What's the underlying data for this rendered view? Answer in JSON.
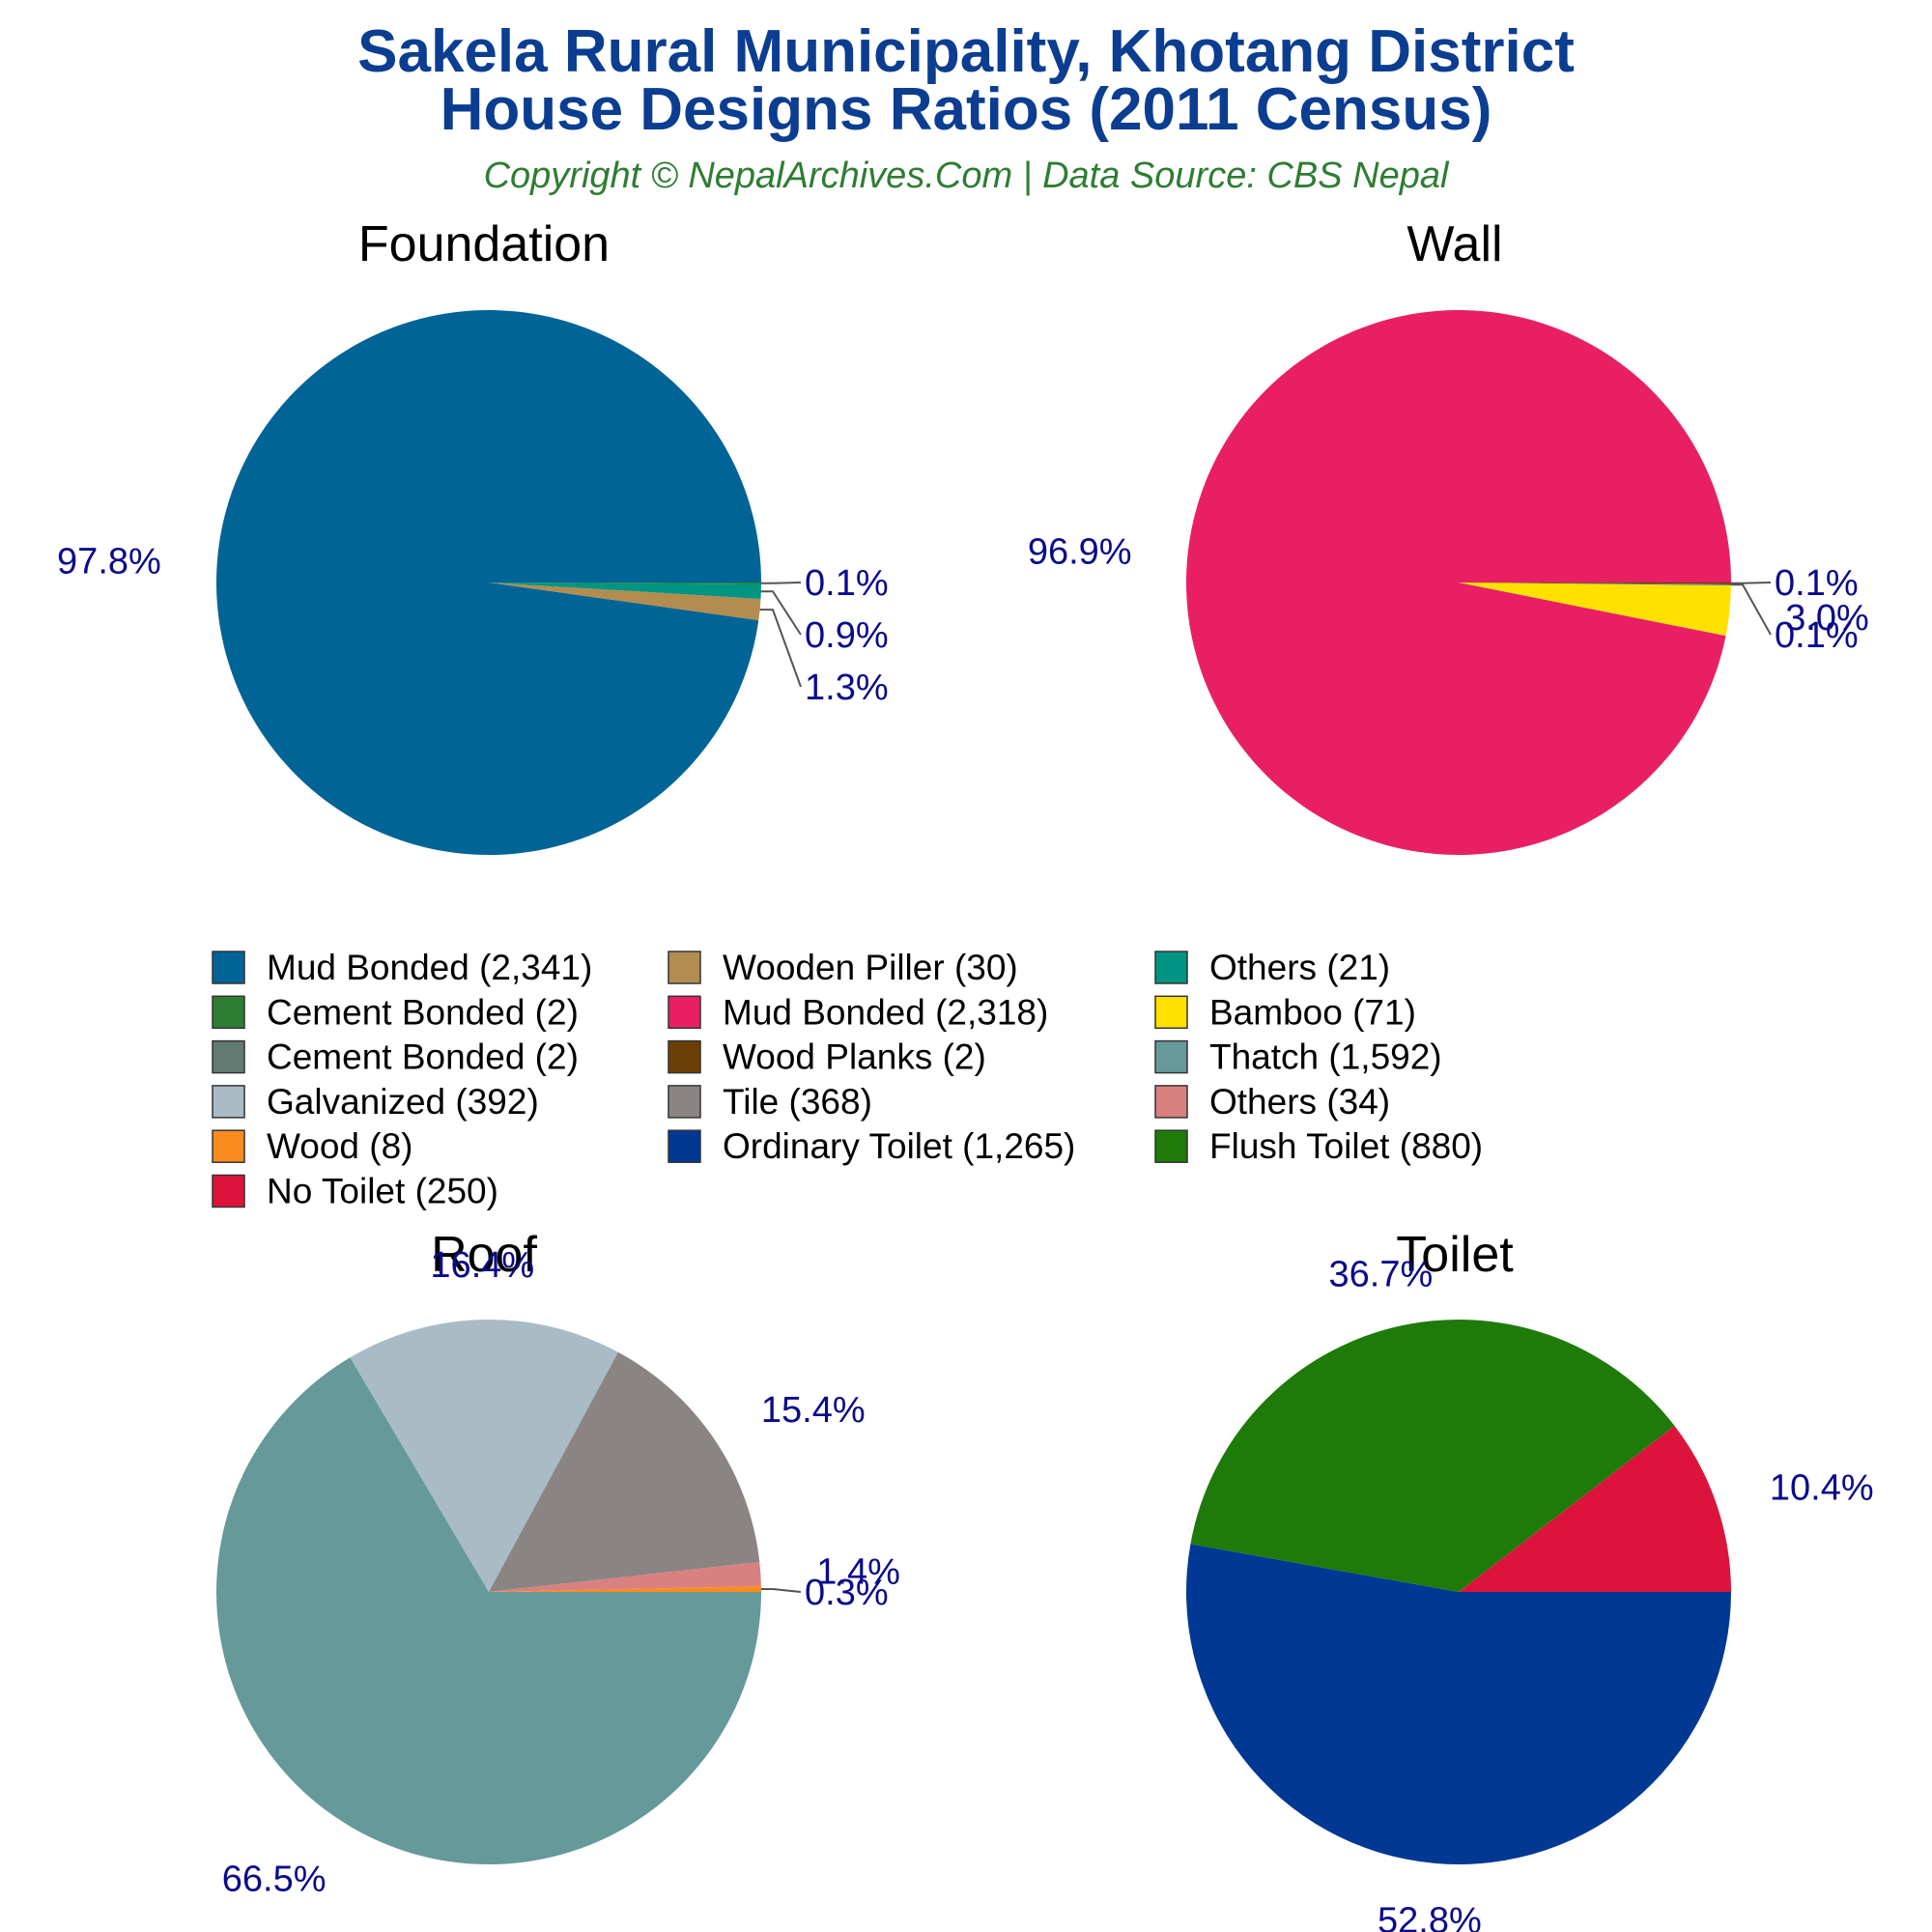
{
  "header": {
    "title_line1": "Sakela Rural Municipality, Khotang District",
    "title_line2": "House Designs Ratios (2011 Census)",
    "subtitle": "Copyright © NepalArchives.Com | Data Source: CBS Nepal"
  },
  "legend": [
    {
      "label": "Mud Bonded (2,341)",
      "color": "#006496"
    },
    {
      "label": "Wooden Piller (30)",
      "color": "#b38c50"
    },
    {
      "label": "Others (21)",
      "color": "#009482"
    },
    {
      "label": "Cement Bonded (2)",
      "color": "#2e7d32"
    },
    {
      "label": "Mud Bonded (2,318)",
      "color": "#e82063"
    },
    {
      "label": "Bamboo (71)",
      "color": "#ffe100"
    },
    {
      "label": "Cement Bonded (2)",
      "color": "#637a73"
    },
    {
      "label": "Wood Planks (2)",
      "color": "#6b3f05"
    },
    {
      "label": "Thatch (1,592)",
      "color": "#669999"
    },
    {
      "label": "Galvanized (392)",
      "color": "#a9bcc6"
    },
    {
      "label": "Tile (368)",
      "color": "#8a8583"
    },
    {
      "label": "Others (34)",
      "color": "#d98080"
    },
    {
      "label": "Wood (8)",
      "color": "#fa8c1e"
    },
    {
      "label": "Ordinary Toilet (1,265)",
      "color": "#003894"
    },
    {
      "label": "Flush Toilet (880)",
      "color": "#1e7b0a"
    },
    {
      "label": "No Toilet (250)",
      "color": "#dc143c"
    }
  ],
  "chart_data": [
    {
      "type": "pie",
      "title": "Foundation",
      "slices": [
        {
          "label": "Mud Bonded",
          "value": 2341,
          "percent_label": "97.8%",
          "color": "#006496"
        },
        {
          "label": "Wooden Piller",
          "value": 30,
          "percent_label": "1.3%",
          "color": "#b38c50"
        },
        {
          "label": "Others",
          "value": 21,
          "percent_label": "0.9%",
          "color": "#009482"
        },
        {
          "label": "Cement Bonded",
          "value": 2,
          "percent_label": "0.1%",
          "color": "#2e7d32"
        }
      ]
    },
    {
      "type": "pie",
      "title": "Wall",
      "slices": [
        {
          "label": "Mud Bonded",
          "value": 2318,
          "percent_label": "96.9%",
          "color": "#e82063"
        },
        {
          "label": "Bamboo",
          "value": 71,
          "percent_label": "3.0%",
          "color": "#ffe100"
        },
        {
          "label": "Cement Bonded",
          "value": 2,
          "percent_label": "0.1%",
          "color": "#637a73"
        },
        {
          "label": "Wood Planks",
          "value": 2,
          "percent_label": "0.1%",
          "color": "#6b3f05"
        }
      ]
    },
    {
      "type": "pie",
      "title": "Roof",
      "slices": [
        {
          "label": "Thatch",
          "value": 1592,
          "percent_label": "66.5%",
          "color": "#669999"
        },
        {
          "label": "Galvanized",
          "value": 392,
          "percent_label": "16.4%",
          "color": "#a9bcc6"
        },
        {
          "label": "Tile",
          "value": 368,
          "percent_label": "15.4%",
          "color": "#8a8583"
        },
        {
          "label": "Others",
          "value": 34,
          "percent_label": "1.4%",
          "color": "#d98080"
        },
        {
          "label": "Wood",
          "value": 8,
          "percent_label": "0.3%",
          "color": "#fa8c1e"
        }
      ]
    },
    {
      "type": "pie",
      "title": "Toilet",
      "slices": [
        {
          "label": "Ordinary Toilet",
          "value": 1265,
          "percent_label": "52.8%",
          "color": "#003894"
        },
        {
          "label": "Flush Toilet",
          "value": 880,
          "percent_label": "36.7%",
          "color": "#1e7b0a"
        },
        {
          "label": "No Toilet",
          "value": 250,
          "percent_label": "10.4%",
          "color": "#dc143c"
        }
      ]
    }
  ]
}
